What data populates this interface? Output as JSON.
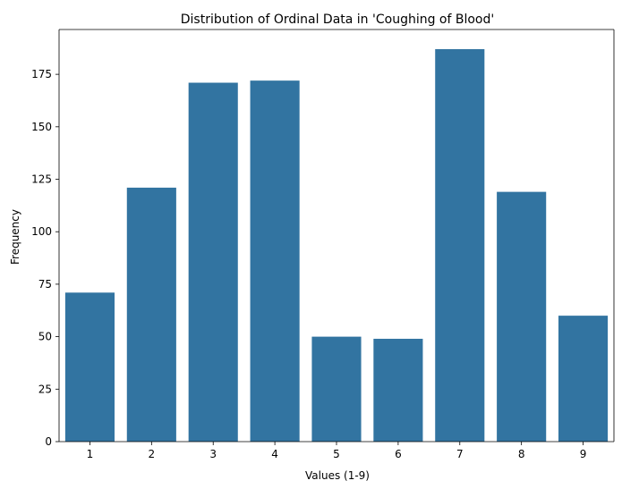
{
  "chart_data": {
    "type": "bar",
    "title": "Distribution of Ordinal Data in 'Coughing of Blood'",
    "xlabel": "Values (1-9)",
    "ylabel": "Frequency",
    "categories": [
      "1",
      "2",
      "3",
      "4",
      "5",
      "6",
      "7",
      "8",
      "9"
    ],
    "values": [
      71,
      121,
      171,
      172,
      50,
      49,
      187,
      119,
      60
    ],
    "ylim": [
      0,
      196.35
    ],
    "yticks": [
      0,
      25,
      50,
      75,
      100,
      125,
      150,
      175
    ],
    "grid": false,
    "bar_color": "#3274a1"
  }
}
